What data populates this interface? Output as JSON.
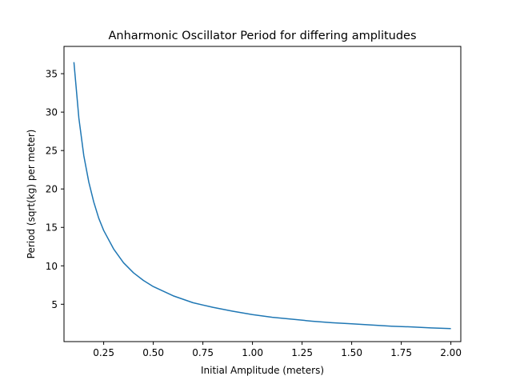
{
  "chart_data": {
    "type": "line",
    "title": "Anharmonic Oscillator Period for differing amplitudes",
    "xlabel": "Initial Amplitude (meters)",
    "ylabel": "Period (sqrt(kg) per meter)",
    "xlim": [
      0.05,
      2.05
    ],
    "ylim": [
      0.14,
      38.55
    ],
    "xticks": [
      0.25,
      0.5,
      0.75,
      1.0,
      1.25,
      1.5,
      1.75,
      2.0
    ],
    "xtick_labels": [
      "0.25",
      "0.50",
      "0.75",
      "1.00",
      "1.25",
      "1.50",
      "1.75",
      "2.00"
    ],
    "yticks": [
      5,
      10,
      15,
      20,
      25,
      30,
      35
    ],
    "ytick_labels": [
      "5",
      "10",
      "15",
      "20",
      "25",
      "30",
      "35"
    ],
    "grid": false,
    "line_color": "#1f77b4",
    "series": [
      {
        "x": [
          0.1,
          0.125,
          0.15,
          0.175,
          0.2,
          0.225,
          0.25,
          0.3,
          0.35,
          0.4,
          0.45,
          0.5,
          0.6,
          0.7,
          0.8,
          0.9,
          1.0,
          1.1,
          1.2,
          1.3,
          1.4,
          1.5,
          1.6,
          1.7,
          1.8,
          1.9,
          2.0
        ],
        "y": [
          36.5,
          29.2,
          24.3,
          20.9,
          18.3,
          16.2,
          14.6,
          12.2,
          10.4,
          9.1,
          8.1,
          7.3,
          6.1,
          5.2,
          4.6,
          4.1,
          3.65,
          3.3,
          3.05,
          2.8,
          2.6,
          2.45,
          2.3,
          2.15,
          2.05,
          1.92,
          1.83
        ]
      }
    ]
  }
}
